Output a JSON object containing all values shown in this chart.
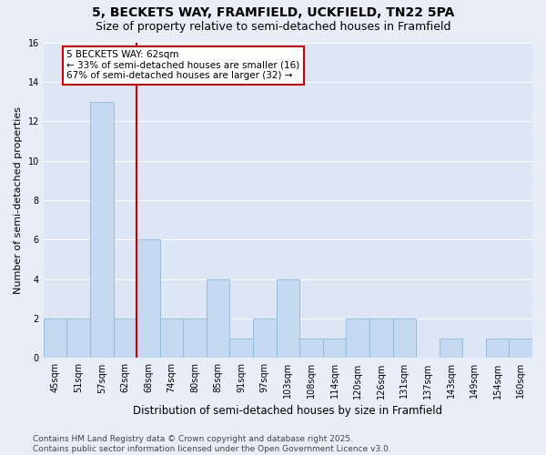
{
  "title1": "5, BECKETS WAY, FRAMFIELD, UCKFIELD, TN22 5PA",
  "title2": "Size of property relative to semi-detached houses in Framfield",
  "xlabel": "Distribution of semi-detached houses by size in Framfield",
  "ylabel": "Number of semi-detached properties",
  "categories": [
    "45sqm",
    "51sqm",
    "57sqm",
    "62sqm",
    "68sqm",
    "74sqm",
    "80sqm",
    "85sqm",
    "91sqm",
    "97sqm",
    "103sqm",
    "108sqm",
    "114sqm",
    "120sqm",
    "126sqm",
    "131sqm",
    "137sqm",
    "143sqm",
    "149sqm",
    "154sqm",
    "160sqm"
  ],
  "values": [
    2,
    2,
    13,
    2,
    6,
    2,
    2,
    4,
    1,
    2,
    4,
    1,
    1,
    2,
    2,
    2,
    0,
    1,
    0,
    1,
    1
  ],
  "bar_color": "#c5d9f1",
  "bar_edge_color": "#8fb8d8",
  "vline_color": "#cc0000",
  "vline_pos": 3.5,
  "annotation_title": "5 BECKETS WAY: 62sqm",
  "annotation_line1": "← 33% of semi-detached houses are smaller (16)",
  "annotation_line2": "67% of semi-detached houses are larger (32) →",
  "annotation_box_color": "#cc0000",
  "ylim": [
    0,
    16
  ],
  "yticks": [
    0,
    2,
    4,
    6,
    8,
    10,
    12,
    14,
    16
  ],
  "footer": "Contains HM Land Registry data © Crown copyright and database right 2025.\nContains public sector information licensed under the Open Government Licence v3.0.",
  "fig_bg_color": "#e8eef8",
  "ax_bg_color": "#dce6f5",
  "grid_color": "#ffffff",
  "title_fontsize": 10,
  "subtitle_fontsize": 9,
  "tick_fontsize": 7,
  "ylabel_fontsize": 8,
  "xlabel_fontsize": 8.5,
  "footer_fontsize": 6.5,
  "ann_fontsize": 7.5
}
